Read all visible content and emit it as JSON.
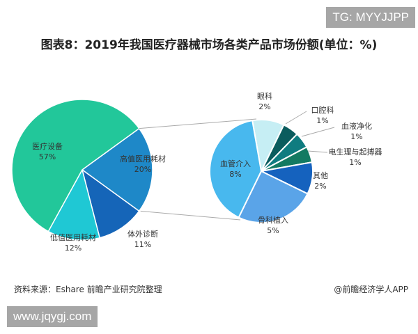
{
  "watermark_top": "TG: MYYJJPP",
  "watermark_bottom": "www.jqygj.com",
  "footer": {
    "source": "资料来源：Eshare 前瞻产业研究院整理",
    "credit": "@前瞻经济学人APP"
  },
  "chart_data": {
    "type": "pie",
    "title": "图表8：2019年我国医疗器械市场各类产品市场份额(单位：%)",
    "unit": "%",
    "main_pie": {
      "slices": [
        {
          "label": "高值医用耗材",
          "value": 20,
          "display": "20%",
          "color": "#1e88c8",
          "exploded_into_sub_pie": true
        },
        {
          "label": "体外诊断",
          "value": 11,
          "display": "11%",
          "color": "#1565b8"
        },
        {
          "label": "低值医用耗材",
          "value": 12,
          "display": "12%",
          "color": "#1fc8d4"
        },
        {
          "label": "医疗设备",
          "value": 57,
          "display": "57%",
          "color": "#22c79a"
        }
      ]
    },
    "sub_pie": {
      "parent": "高值医用耗材",
      "slices": [
        {
          "label": "眼科",
          "value": 2,
          "display": "2%",
          "color": "#c6eef4"
        },
        {
          "label": "口腔科",
          "value": 1,
          "display": "1%",
          "color": "#0b5c5e"
        },
        {
          "label": "血液净化",
          "value": 1,
          "display": "1%",
          "color": "#0f7c80"
        },
        {
          "label": "电生理与起搏器",
          "value": 1,
          "display": "1%",
          "color": "#137a62"
        },
        {
          "label": "其他",
          "value": 2,
          "display": "2%",
          "color": "#1562be"
        },
        {
          "label": "骨科植入",
          "value": 5,
          "display": "5%",
          "color": "#5aa4e8"
        },
        {
          "label": "血管介入",
          "value": 8,
          "display": "8%",
          "color": "#48b8ee"
        }
      ]
    }
  }
}
